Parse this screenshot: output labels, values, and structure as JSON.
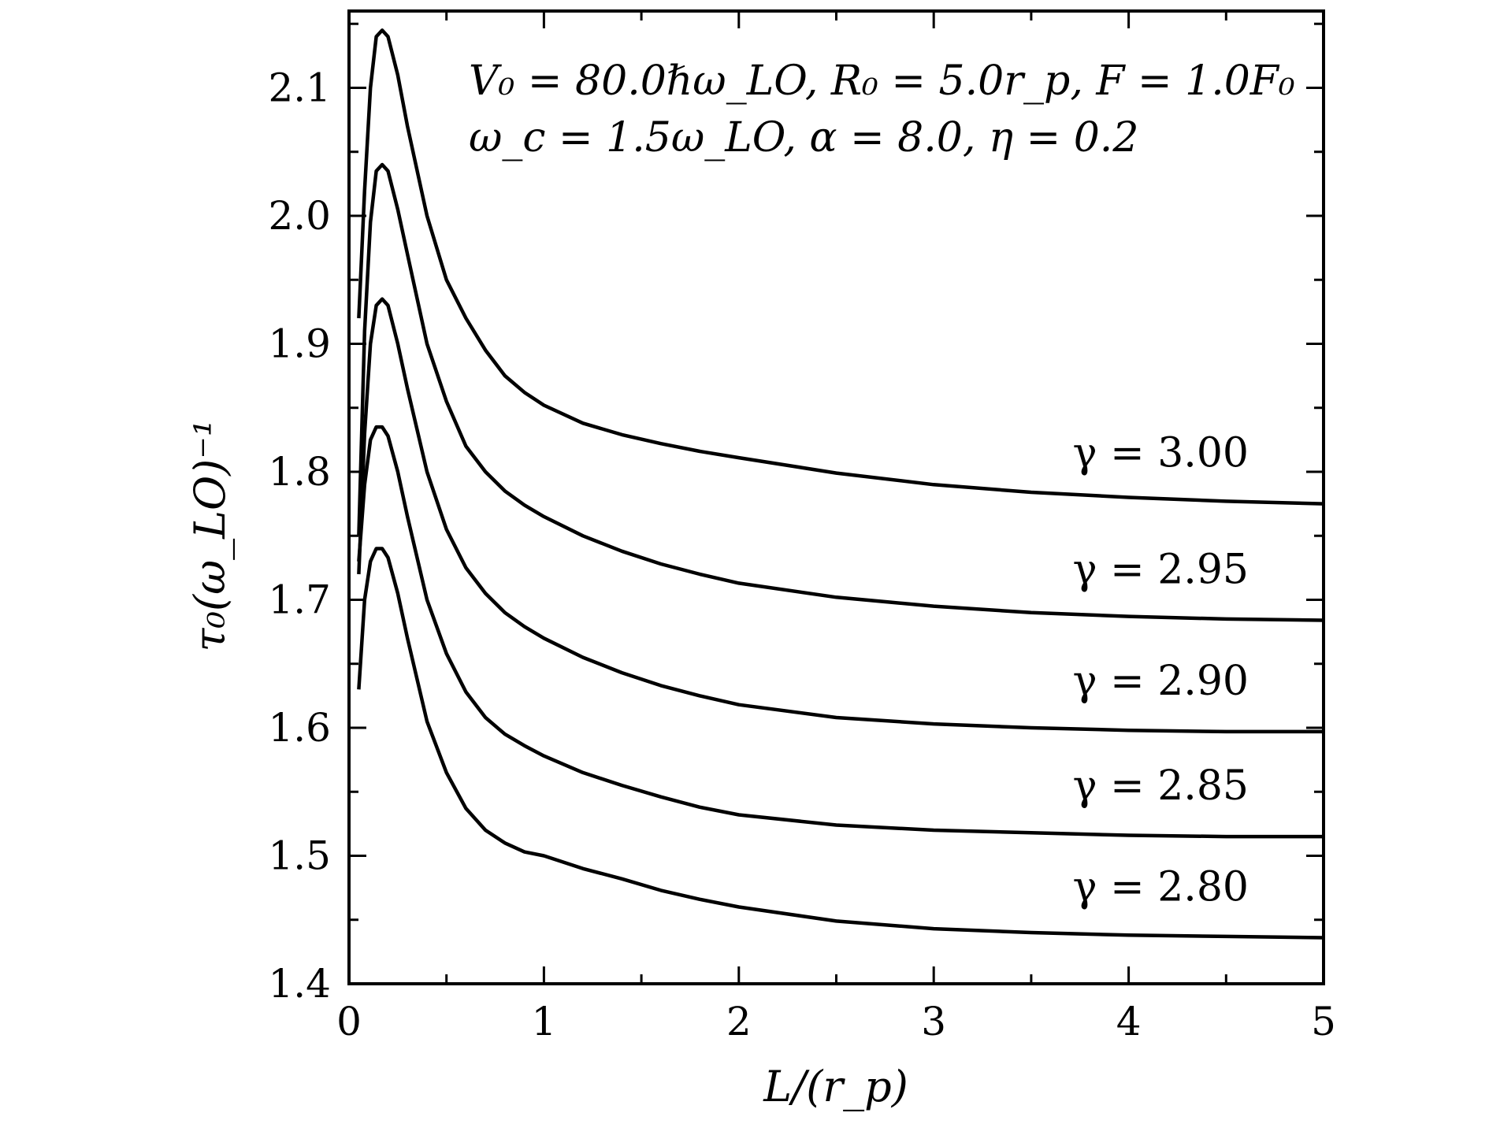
{
  "chart_data": {
    "type": "line",
    "xlabel": "L/(r_p)",
    "ylabel": "τ₀(ω_LO)⁻¹",
    "xlim": [
      0,
      5
    ],
    "ylim": [
      1.4,
      2.16
    ],
    "x_ticks": [
      "0",
      "1",
      "2",
      "3",
      "4",
      "5"
    ],
    "y_ticks": [
      "1.4",
      "1.5",
      "1.6",
      "1.7",
      "1.8",
      "1.9",
      "2.0",
      "2.1"
    ],
    "grid": false,
    "annotation": [
      "V₀ = 80.0ℏω_LO, R₀ = 5.0r_p, F = 1.0F₀",
      "ω_c = 1.5ω_LO, α = 8.0, η = 0.2"
    ],
    "x": [
      0.05,
      0.08,
      0.11,
      0.14,
      0.17,
      0.2,
      0.25,
      0.3,
      0.4,
      0.5,
      0.6,
      0.7,
      0.8,
      0.9,
      1.0,
      1.2,
      1.4,
      1.6,
      1.8,
      2.0,
      2.5,
      3.0,
      3.5,
      4.0,
      4.5,
      5.0
    ],
    "series": [
      {
        "name": "γ = 3.00",
        "values": [
          1.92,
          2.02,
          2.1,
          2.14,
          2.145,
          2.14,
          2.11,
          2.07,
          2.0,
          1.95,
          1.92,
          1.895,
          1.875,
          1.862,
          1.852,
          1.838,
          1.829,
          1.822,
          1.816,
          1.811,
          1.799,
          1.79,
          1.784,
          1.78,
          1.777,
          1.775
        ]
      },
      {
        "name": "γ = 2.95",
        "values": [
          1.75,
          1.91,
          1.995,
          2.035,
          2.04,
          2.035,
          2.005,
          1.97,
          1.9,
          1.855,
          1.82,
          1.8,
          1.785,
          1.774,
          1.765,
          1.75,
          1.738,
          1.728,
          1.72,
          1.713,
          1.702,
          1.695,
          1.69,
          1.687,
          1.685,
          1.684
        ]
      },
      {
        "name": "γ = 2.90",
        "values": [
          1.72,
          1.83,
          1.9,
          1.93,
          1.935,
          1.93,
          1.9,
          1.865,
          1.8,
          1.755,
          1.725,
          1.705,
          1.69,
          1.679,
          1.67,
          1.655,
          1.643,
          1.633,
          1.625,
          1.618,
          1.608,
          1.603,
          1.6,
          1.598,
          1.597,
          1.597
        ]
      },
      {
        "name": "γ = 2.85",
        "values": [
          1.73,
          1.79,
          1.825,
          1.835,
          1.835,
          1.828,
          1.8,
          1.765,
          1.7,
          1.658,
          1.628,
          1.608,
          1.595,
          1.586,
          1.578,
          1.565,
          1.555,
          1.546,
          1.538,
          1.532,
          1.524,
          1.52,
          1.518,
          1.516,
          1.515,
          1.515
        ]
      },
      {
        "name": "γ = 2.80",
        "values": [
          1.63,
          1.7,
          1.73,
          1.74,
          1.74,
          1.733,
          1.705,
          1.67,
          1.605,
          1.565,
          1.537,
          1.52,
          1.51,
          1.503,
          1.5,
          1.49,
          1.482,
          1.473,
          1.466,
          1.46,
          1.449,
          1.443,
          1.44,
          1.438,
          1.437,
          1.436
        ]
      }
    ]
  }
}
